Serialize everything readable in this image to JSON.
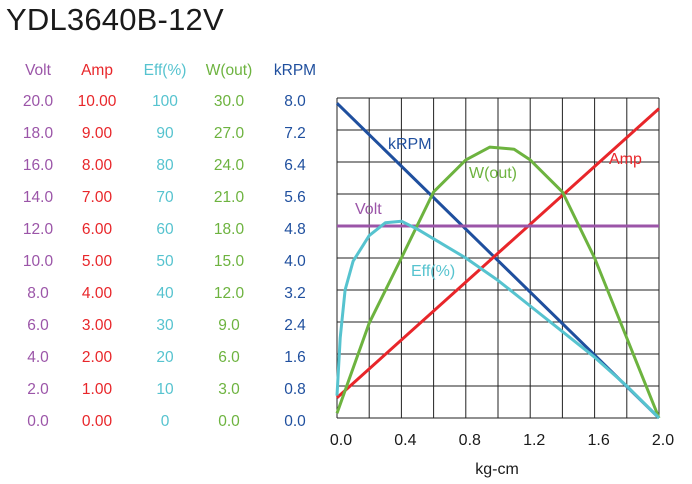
{
  "title": "YDL3640B-12V",
  "chart_data": {
    "type": "line",
    "title": "YDL3640B-12V",
    "xlabel": "kg-cm",
    "xlim": [
      0,
      2.0
    ],
    "x_ticks": [
      "0.0",
      "0.4",
      "0.8",
      "1.2",
      "1.6",
      "2.0"
    ],
    "grid": true,
    "axes": [
      {
        "name": "Volt",
        "color": "#9b55a8",
        "range": [
          0,
          20
        ],
        "ticks": [
          "20.0",
          "18.0",
          "16.0",
          "14.0",
          "12.0",
          "10.0",
          "8.0",
          "6.0",
          "4.0",
          "2.0",
          "0.0"
        ]
      },
      {
        "name": "Amp",
        "color": "#e8262a",
        "range": [
          0,
          10
        ],
        "ticks": [
          "10.00",
          "9.00",
          "8.00",
          "7.00",
          "6.00",
          "5.00",
          "4.00",
          "3.00",
          "2.00",
          "1.00",
          "0.00"
        ]
      },
      {
        "name": "Eff(%)",
        "color": "#56c3cf",
        "range": [
          0,
          100
        ],
        "ticks": [
          "100",
          "90",
          "80",
          "70",
          "60",
          "50",
          "40",
          "30",
          "20",
          "10",
          "0"
        ]
      },
      {
        "name": "W(out)",
        "color": "#6db33f",
        "range": [
          0,
          30
        ],
        "ticks": [
          "30.0",
          "27.0",
          "24.0",
          "21.0",
          "18.0",
          "15.0",
          "12.0",
          "9.0",
          "6.0",
          "3.0",
          "0.0"
        ]
      },
      {
        "name": "kRPM",
        "color": "#1f4f9e",
        "range": [
          0,
          8
        ],
        "ticks": [
          "8.0",
          "7.2",
          "6.4",
          "5.6",
          "4.8",
          "4.0",
          "3.2",
          "2.4",
          "1.6",
          "0.8",
          "0.0"
        ]
      }
    ],
    "series": [
      {
        "name": "kRPM",
        "axis": 4,
        "x": [
          0,
          2.0
        ],
        "y": [
          7.87,
          0
        ]
      },
      {
        "name": "Amp",
        "axis": 1,
        "x": [
          0,
          2.0
        ],
        "y": [
          0.63,
          9.67
        ]
      },
      {
        "name": "Volt",
        "axis": 0,
        "x": [
          0,
          2.0
        ],
        "y": [
          12.0,
          12.0
        ]
      },
      {
        "name": "W(out)",
        "axis": 3,
        "x": [
          0,
          0.2,
          0.4,
          0.6,
          0.8,
          0.95,
          1.1,
          1.2,
          1.4,
          1.6,
          1.8,
          2.0
        ],
        "y": [
          0.45,
          8.9,
          15.0,
          21.2,
          24.2,
          25.4,
          25.2,
          24.2,
          21.2,
          15.0,
          7.5,
          0
        ]
      },
      {
        "name": "Eff(%)",
        "axis": 2,
        "x": [
          0,
          0.02,
          0.05,
          0.1,
          0.2,
          0.3,
          0.4,
          0.5,
          0.6,
          0.8,
          1.0,
          1.2,
          1.4,
          1.6,
          1.8,
          2.0
        ],
        "y": [
          7,
          25,
          40,
          49,
          57,
          61,
          61.5,
          59,
          56,
          50,
          43,
          35,
          27,
          19,
          10,
          0
        ]
      }
    ]
  }
}
